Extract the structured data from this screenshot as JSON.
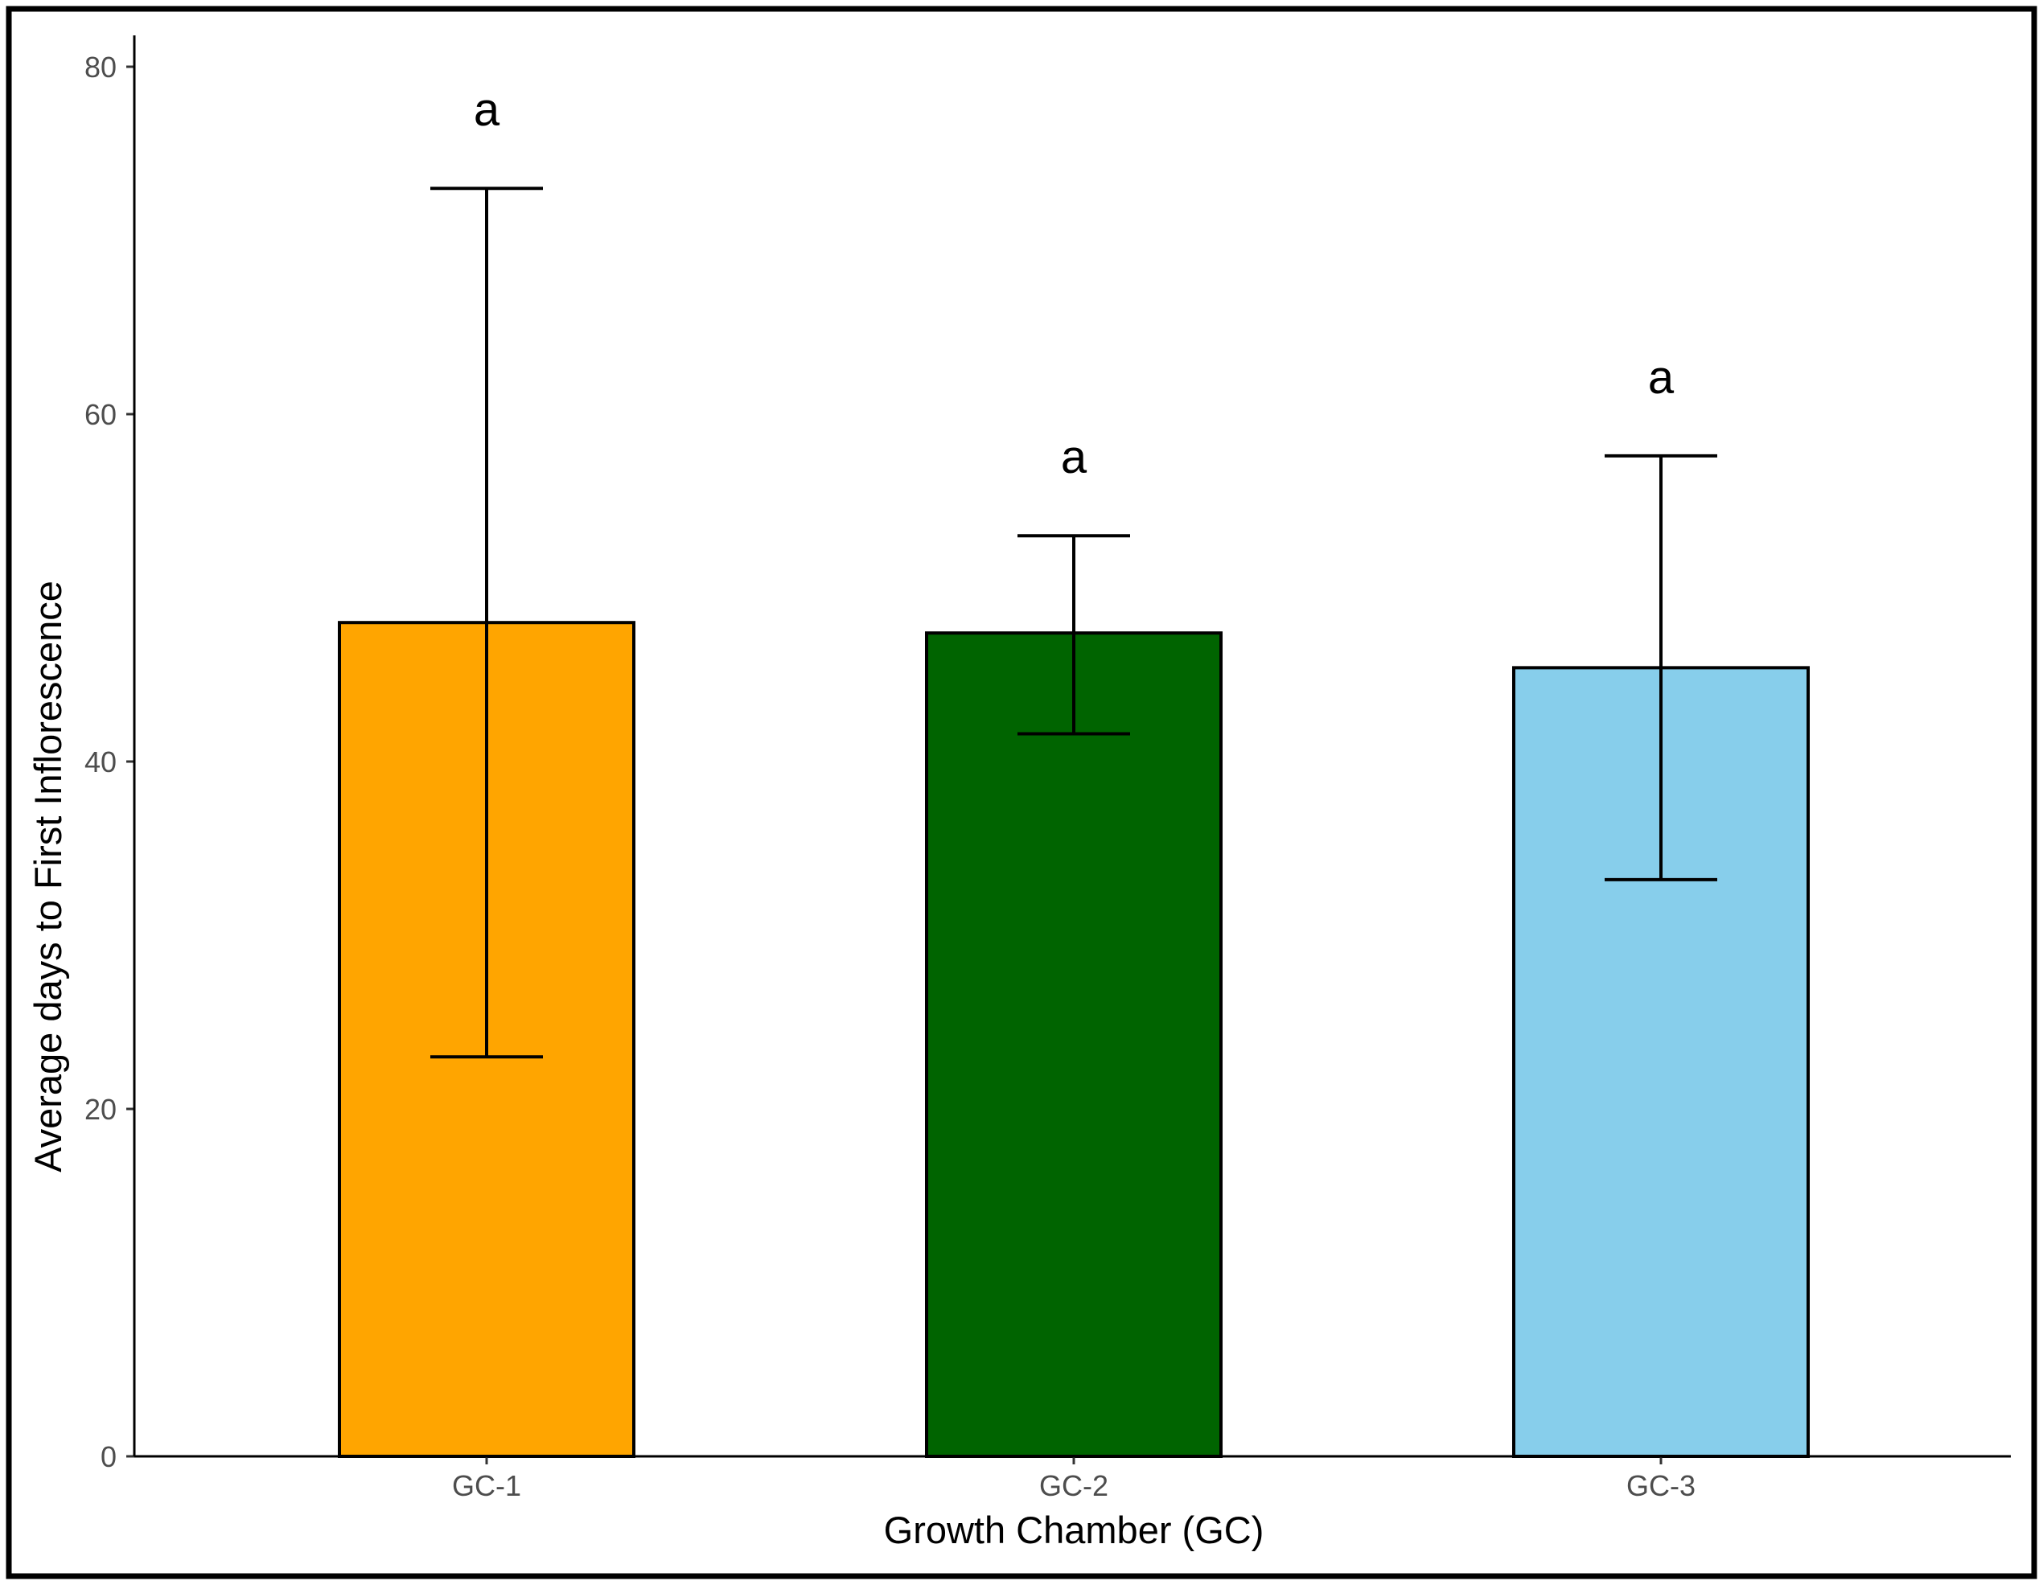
{
  "chart_data": {
    "type": "bar",
    "title": "",
    "xlabel": "Growth Chamber (GC)",
    "ylabel": "Average days to First Inflorescence",
    "categories": [
      "GC-1",
      "GC-2",
      "GC-3"
    ],
    "values": [
      48.0,
      47.4,
      45.4
    ],
    "error_low": [
      23.0,
      41.6,
      33.2
    ],
    "error_high": [
      73.0,
      53.0,
      57.6
    ],
    "significance_letters": [
      "a",
      "a",
      "a"
    ],
    "colors": [
      "#FFA500",
      "#006400",
      "#87CEEB"
    ],
    "ylim": [
      0,
      80
    ],
    "yticks": [
      0,
      20,
      40,
      60,
      80
    ],
    "grid": false,
    "legend": "none"
  }
}
